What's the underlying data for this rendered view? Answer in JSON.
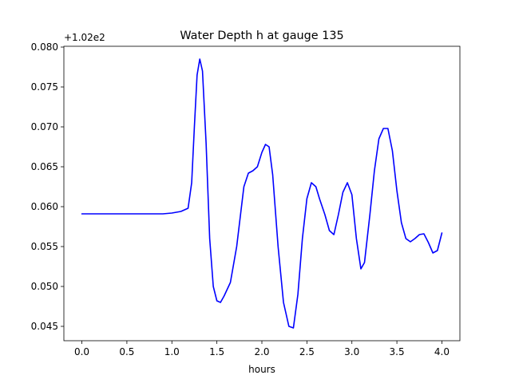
{
  "chart_data": {
    "type": "line",
    "title": "Water Depth h at gauge 135",
    "xlabel": "hours",
    "ylabel": "",
    "y_offset_label": "+1.02e2",
    "xlim": [
      -0.2,
      4.2
    ],
    "ylim": [
      0.0432,
      0.0801
    ],
    "x_ticks": [
      0.0,
      0.5,
      1.0,
      1.5,
      2.0,
      2.5,
      3.0,
      3.5,
      4.0
    ],
    "x_tick_labels": [
      "0.0",
      "0.5",
      "1.0",
      "1.5",
      "2.0",
      "2.5",
      "3.0",
      "3.5",
      "4.0"
    ],
    "y_ticks": [
      0.045,
      0.05,
      0.055,
      0.06,
      0.065,
      0.07,
      0.075,
      0.08
    ],
    "y_tick_labels": [
      "0.045",
      "0.050",
      "0.055",
      "0.060",
      "0.065",
      "0.070",
      "0.075",
      "0.080"
    ],
    "grid": false,
    "series": [
      {
        "color": "#0000ff",
        "x": [
          0.0,
          0.5,
          0.9,
          1.0,
          1.1,
          1.18,
          1.22,
          1.25,
          1.28,
          1.31,
          1.34,
          1.38,
          1.42,
          1.46,
          1.5,
          1.54,
          1.58,
          1.65,
          1.72,
          1.8,
          1.85,
          1.9,
          1.95,
          2.0,
          2.04,
          2.08,
          2.12,
          2.18,
          2.24,
          2.3,
          2.35,
          2.4,
          2.45,
          2.5,
          2.55,
          2.6,
          2.64,
          2.7,
          2.75,
          2.8,
          2.85,
          2.9,
          2.95,
          3.0,
          3.05,
          3.1,
          3.14,
          3.2,
          3.25,
          3.3,
          3.35,
          3.4,
          3.45,
          3.5,
          3.55,
          3.6,
          3.65,
          3.7,
          3.75,
          3.8,
          3.85,
          3.9,
          3.95,
          4.0
        ],
        "y": [
          0.0591,
          0.0591,
          0.0591,
          0.0592,
          0.0594,
          0.0598,
          0.063,
          0.07,
          0.0765,
          0.0785,
          0.077,
          0.068,
          0.056,
          0.05,
          0.0482,
          0.048,
          0.0488,
          0.0505,
          0.055,
          0.0625,
          0.0642,
          0.0645,
          0.065,
          0.0668,
          0.0678,
          0.0675,
          0.064,
          0.055,
          0.048,
          0.045,
          0.0448,
          0.049,
          0.056,
          0.061,
          0.063,
          0.0625,
          0.061,
          0.059,
          0.057,
          0.0565,
          0.059,
          0.0618,
          0.063,
          0.0615,
          0.056,
          0.0522,
          0.053,
          0.059,
          0.0645,
          0.0685,
          0.0698,
          0.0698,
          0.067,
          0.062,
          0.058,
          0.056,
          0.0556,
          0.056,
          0.0565,
          0.0566,
          0.0555,
          0.0542,
          0.0545,
          0.0567
        ]
      }
    ]
  }
}
